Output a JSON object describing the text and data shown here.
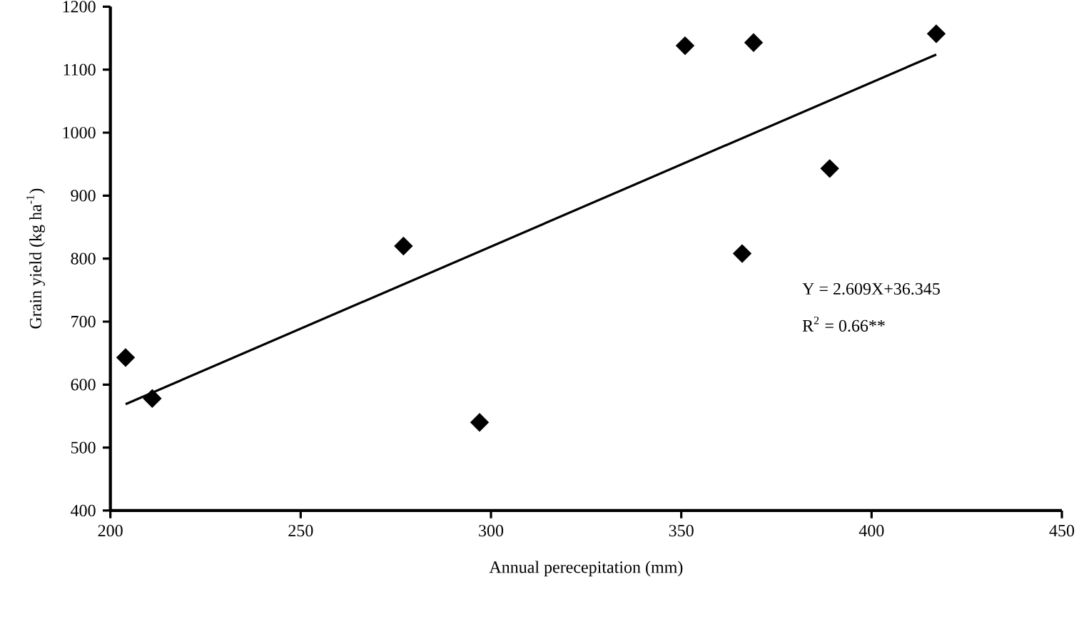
{
  "chart_data": {
    "type": "scatter",
    "xlabel": "Annual perecepitation (mm)",
    "ylabel": "Grain yield (kg ha$^{-1}$)",
    "xlim": [
      200,
      450
    ],
    "xticks": [
      200,
      250,
      300,
      350,
      400,
      450
    ],
    "ylim": [
      400,
      1200
    ],
    "yticks": [
      400,
      500,
      600,
      700,
      800,
      900,
      1000,
      1100,
      1200
    ],
    "marker": "diamond",
    "grid": false,
    "series": [
      {
        "color": "#000000",
        "x": [
          204,
          211,
          277,
          297,
          351,
          366,
          369,
          389,
          417
        ],
        "values": [
          643,
          578,
          820,
          540,
          1138,
          808,
          1143,
          943,
          1157
        ]
      },
      {
        "type": "line",
        "color": "#000000",
        "marker": "none",
        "line_style": "solid",
        "x": [
          204,
          417
        ],
        "values": [
          569,
          1124
        ]
      }
    ],
    "annotations": [
      "Y = 2.609X+36.345",
      "R$^{2}$ = 0.66**"
    ]
  }
}
